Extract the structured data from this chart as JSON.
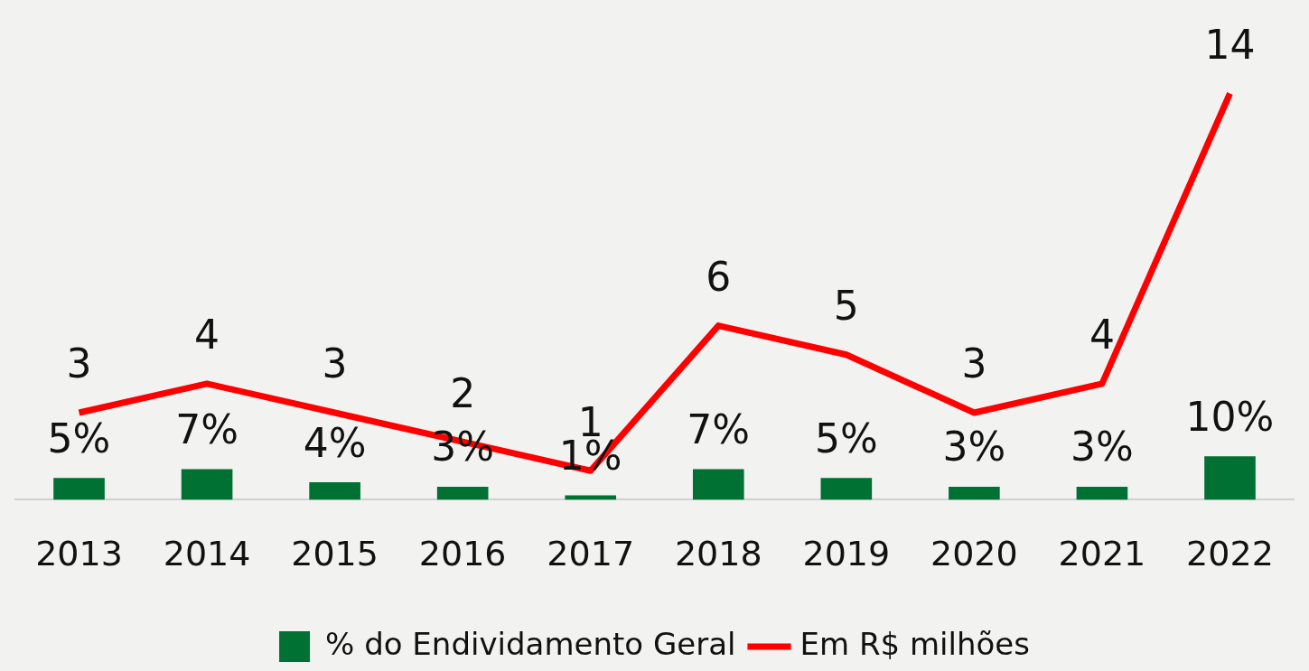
{
  "chart_data": {
    "type": "bar",
    "categories": [
      "2013",
      "2014",
      "2015",
      "2016",
      "2017",
      "2018",
      "2019",
      "2020",
      "2021",
      "2022"
    ],
    "series": [
      {
        "name": "% do Endividamento Geral",
        "color": "#007033",
        "values": [
          5,
          7,
          4,
          3,
          1,
          7,
          5,
          3,
          3,
          10
        ],
        "value_labels": [
          "5%",
          "7%",
          "4%",
          "3%",
          "1%",
          "7%",
          "5%",
          "3%",
          "3%",
          "10%"
        ]
      },
      {
        "name": "Em R$ milhões",
        "type": "line",
        "axis": "y2",
        "color": "#ff0000",
        "values": [
          3,
          4,
          3,
          2,
          1,
          6,
          5,
          3,
          4,
          14
        ]
      }
    ],
    "data_labels": true,
    "legend": "bottom",
    "marker": "none",
    "line_style": "solid",
    "grid": false
  }
}
